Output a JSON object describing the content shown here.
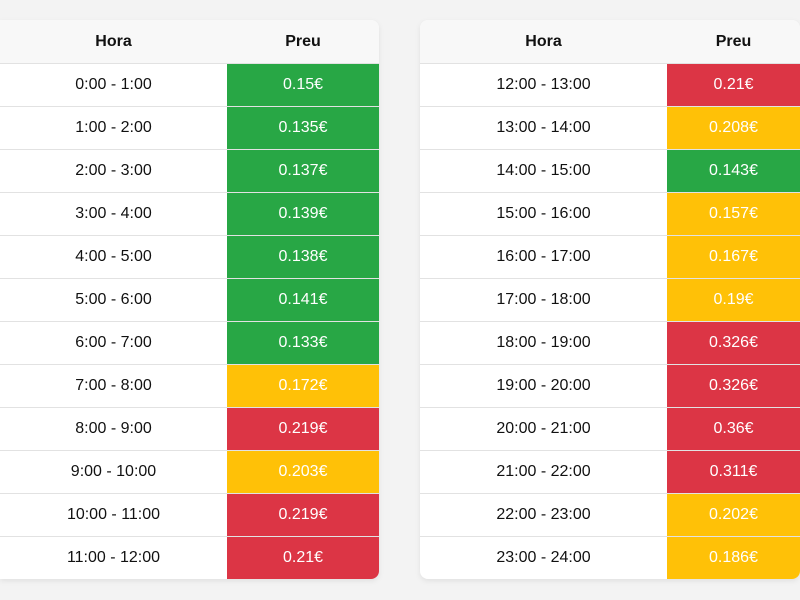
{
  "colors": {
    "green": "#28a745",
    "yellow": "#ffc107",
    "red": "#dc3545"
  },
  "tables": [
    {
      "headers": [
        "Hora",
        "Preu"
      ],
      "rows": [
        {
          "hora": "0:00 - 1:00",
          "preu": "0.15€",
          "level": "green"
        },
        {
          "hora": "1:00 - 2:00",
          "preu": "0.135€",
          "level": "green"
        },
        {
          "hora": "2:00 - 3:00",
          "preu": "0.137€",
          "level": "green"
        },
        {
          "hora": "3:00 - 4:00",
          "preu": "0.139€",
          "level": "green"
        },
        {
          "hora": "4:00 - 5:00",
          "preu": "0.138€",
          "level": "green"
        },
        {
          "hora": "5:00 - 6:00",
          "preu": "0.141€",
          "level": "green"
        },
        {
          "hora": "6:00 - 7:00",
          "preu": "0.133€",
          "level": "green"
        },
        {
          "hora": "7:00 - 8:00",
          "preu": "0.172€",
          "level": "yellow"
        },
        {
          "hora": "8:00 - 9:00",
          "preu": "0.219€",
          "level": "red"
        },
        {
          "hora": "9:00 - 10:00",
          "preu": "0.203€",
          "level": "yellow"
        },
        {
          "hora": "10:00 - 11:00",
          "preu": "0.219€",
          "level": "red"
        },
        {
          "hora": "11:00 - 12:00",
          "preu": "0.21€",
          "level": "red"
        }
      ]
    },
    {
      "headers": [
        "Hora",
        "Preu"
      ],
      "rows": [
        {
          "hora": "12:00 - 13:00",
          "preu": "0.21€",
          "level": "red"
        },
        {
          "hora": "13:00 - 14:00",
          "preu": "0.208€",
          "level": "yellow"
        },
        {
          "hora": "14:00 - 15:00",
          "preu": "0.143€",
          "level": "green"
        },
        {
          "hora": "15:00 - 16:00",
          "preu": "0.157€",
          "level": "yellow"
        },
        {
          "hora": "16:00 - 17:00",
          "preu": "0.167€",
          "level": "yellow"
        },
        {
          "hora": "17:00 - 18:00",
          "preu": "0.19€",
          "level": "yellow"
        },
        {
          "hora": "18:00 - 19:00",
          "preu": "0.326€",
          "level": "red"
        },
        {
          "hora": "19:00 - 20:00",
          "preu": "0.326€",
          "level": "red"
        },
        {
          "hora": "20:00 - 21:00",
          "preu": "0.36€",
          "level": "red"
        },
        {
          "hora": "21:00 - 22:00",
          "preu": "0.311€",
          "level": "red"
        },
        {
          "hora": "22:00 - 23:00",
          "preu": "0.202€",
          "level": "yellow"
        },
        {
          "hora": "23:00 - 24:00",
          "preu": "0.186€",
          "level": "yellow"
        }
      ]
    }
  ]
}
